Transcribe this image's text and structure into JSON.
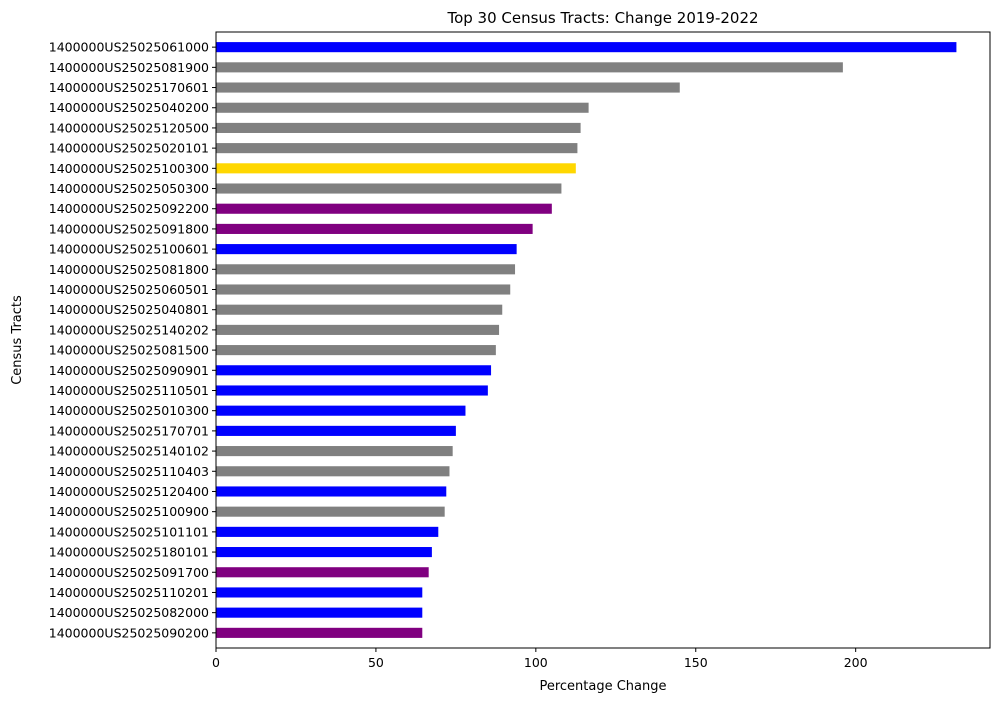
{
  "chart_data": {
    "type": "bar",
    "orientation": "horizontal",
    "title": "Top 30 Census Tracts: Change 2019-2022",
    "xlabel": "Percentage Change",
    "ylabel": "Census Tracts",
    "xlim": [
      0,
      242
    ],
    "xticks": [
      0,
      50,
      100,
      150,
      200
    ],
    "grid": false,
    "categories": [
      "1400000US25025061000",
      "1400000US25025081900",
      "1400000US25025170601",
      "1400000US25025040200",
      "1400000US25025120500",
      "1400000US25025020101",
      "1400000US25025100300",
      "1400000US25025050300",
      "1400000US25025092200",
      "1400000US25025091800",
      "1400000US25025100601",
      "1400000US25025081800",
      "1400000US25025060501",
      "1400000US25025040801",
      "1400000US25025140202",
      "1400000US25025081500",
      "1400000US25025090901",
      "1400000US25025110501",
      "1400000US25025010300",
      "1400000US25025170701",
      "1400000US25025140102",
      "1400000US25025110403",
      "1400000US25025120400",
      "1400000US25025100900",
      "1400000US25025101101",
      "1400000US25025180101",
      "1400000US25025091700",
      "1400000US25025110201",
      "1400000US25025082000",
      "1400000US25025090200"
    ],
    "values": [
      231.5,
      196,
      145,
      116.5,
      114,
      113,
      112.5,
      108,
      105,
      99,
      94,
      93.5,
      92,
      89.5,
      88.5,
      87.5,
      86,
      85,
      78,
      75,
      74,
      73,
      72,
      71.5,
      69.5,
      67.5,
      66.5,
      64.5,
      64.5,
      64.5
    ],
    "bar_colors": [
      "#0000ff",
      "#808080",
      "#808080",
      "#808080",
      "#808080",
      "#808080",
      "#ffd700",
      "#808080",
      "#800080",
      "#800080",
      "#0000ff",
      "#808080",
      "#808080",
      "#808080",
      "#808080",
      "#808080",
      "#0000ff",
      "#0000ff",
      "#0000ff",
      "#0000ff",
      "#808080",
      "#808080",
      "#0000ff",
      "#808080",
      "#0000ff",
      "#0000ff",
      "#800080",
      "#0000ff",
      "#0000ff",
      "#800080"
    ]
  }
}
